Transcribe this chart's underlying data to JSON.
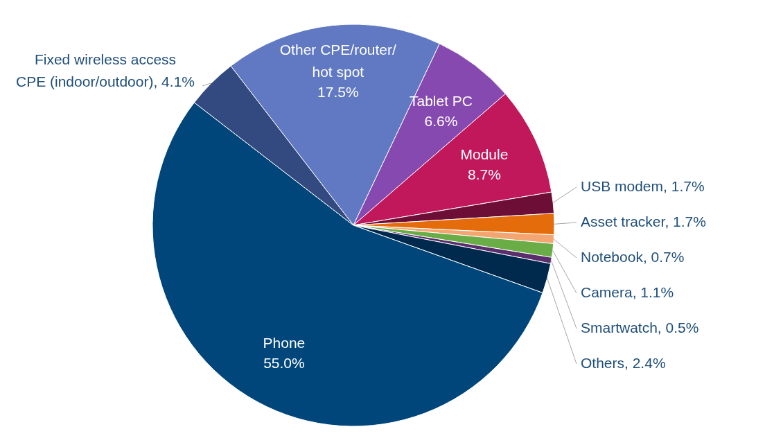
{
  "chart_data": {
    "type": "pie",
    "categories": [
      "Other CPE/router/hot spot",
      "Tablet PC",
      "Module",
      "USB modem",
      "Asset tracker",
      "Notebook",
      "Camera",
      "Smartwatch",
      "Others",
      "Phone",
      "Fixed wireless access CPE (indoor/outdoor)"
    ],
    "values": [
      17.5,
      6.6,
      8.7,
      1.7,
      1.7,
      0.7,
      1.1,
      0.5,
      2.4,
      55.0,
      4.1
    ],
    "value_labels": [
      "17.5%",
      "6.6%",
      "8.7%",
      "1.7%",
      "1.7%",
      "0.7%",
      "1.1%",
      "0.5%",
      "2.4%",
      "55.0%",
      "4.1%"
    ],
    "colors": [
      "#6079c2",
      "#8549b0",
      "#c0185b",
      "#6d0e37",
      "#e46c0a",
      "#f4a672",
      "#6aad46",
      "#5a2d6c",
      "#002a4d",
      "#00467a",
      "#324a80"
    ]
  }
}
